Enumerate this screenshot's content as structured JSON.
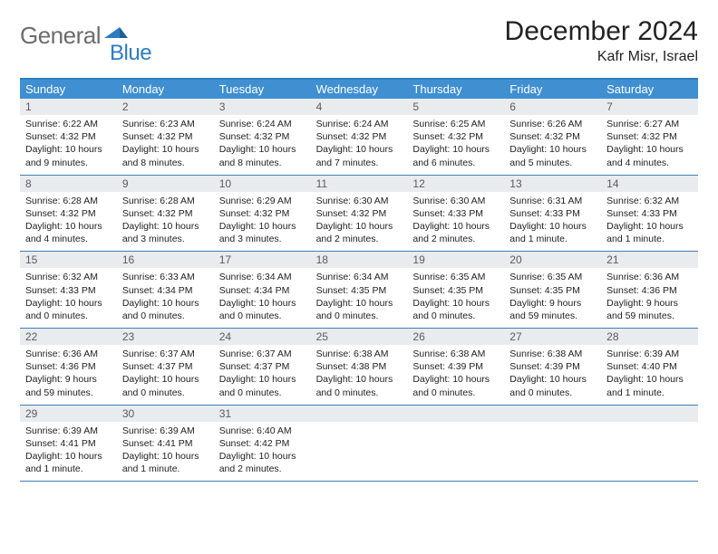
{
  "logo": {
    "general": "General",
    "blue": "Blue"
  },
  "title": "December 2024",
  "location": "Kafr Misr, Israel",
  "colors": {
    "header_bar": "#3f8fd1",
    "top_rule": "#2e7cc0",
    "row_rule": "#3f7fb5",
    "daynum_bg": "#e9ecef",
    "logo_gray": "#6c6c6c",
    "logo_blue": "#2e7cc0"
  },
  "dow": [
    "Sunday",
    "Monday",
    "Tuesday",
    "Wednesday",
    "Thursday",
    "Friday",
    "Saturday"
  ],
  "weeks": [
    [
      {
        "n": "1",
        "sr": "Sunrise: 6:22 AM",
        "ss": "Sunset: 4:32 PM",
        "dl": "Daylight: 10 hours and 9 minutes."
      },
      {
        "n": "2",
        "sr": "Sunrise: 6:23 AM",
        "ss": "Sunset: 4:32 PM",
        "dl": "Daylight: 10 hours and 8 minutes."
      },
      {
        "n": "3",
        "sr": "Sunrise: 6:24 AM",
        "ss": "Sunset: 4:32 PM",
        "dl": "Daylight: 10 hours and 8 minutes."
      },
      {
        "n": "4",
        "sr": "Sunrise: 6:24 AM",
        "ss": "Sunset: 4:32 PM",
        "dl": "Daylight: 10 hours and 7 minutes."
      },
      {
        "n": "5",
        "sr": "Sunrise: 6:25 AM",
        "ss": "Sunset: 4:32 PM",
        "dl": "Daylight: 10 hours and 6 minutes."
      },
      {
        "n": "6",
        "sr": "Sunrise: 6:26 AM",
        "ss": "Sunset: 4:32 PM",
        "dl": "Daylight: 10 hours and 5 minutes."
      },
      {
        "n": "7",
        "sr": "Sunrise: 6:27 AM",
        "ss": "Sunset: 4:32 PM",
        "dl": "Daylight: 10 hours and 4 minutes."
      }
    ],
    [
      {
        "n": "8",
        "sr": "Sunrise: 6:28 AM",
        "ss": "Sunset: 4:32 PM",
        "dl": "Daylight: 10 hours and 4 minutes."
      },
      {
        "n": "9",
        "sr": "Sunrise: 6:28 AM",
        "ss": "Sunset: 4:32 PM",
        "dl": "Daylight: 10 hours and 3 minutes."
      },
      {
        "n": "10",
        "sr": "Sunrise: 6:29 AM",
        "ss": "Sunset: 4:32 PM",
        "dl": "Daylight: 10 hours and 3 minutes."
      },
      {
        "n": "11",
        "sr": "Sunrise: 6:30 AM",
        "ss": "Sunset: 4:32 PM",
        "dl": "Daylight: 10 hours and 2 minutes."
      },
      {
        "n": "12",
        "sr": "Sunrise: 6:30 AM",
        "ss": "Sunset: 4:33 PM",
        "dl": "Daylight: 10 hours and 2 minutes."
      },
      {
        "n": "13",
        "sr": "Sunrise: 6:31 AM",
        "ss": "Sunset: 4:33 PM",
        "dl": "Daylight: 10 hours and 1 minute."
      },
      {
        "n": "14",
        "sr": "Sunrise: 6:32 AM",
        "ss": "Sunset: 4:33 PM",
        "dl": "Daylight: 10 hours and 1 minute."
      }
    ],
    [
      {
        "n": "15",
        "sr": "Sunrise: 6:32 AM",
        "ss": "Sunset: 4:33 PM",
        "dl": "Daylight: 10 hours and 0 minutes."
      },
      {
        "n": "16",
        "sr": "Sunrise: 6:33 AM",
        "ss": "Sunset: 4:34 PM",
        "dl": "Daylight: 10 hours and 0 minutes."
      },
      {
        "n": "17",
        "sr": "Sunrise: 6:34 AM",
        "ss": "Sunset: 4:34 PM",
        "dl": "Daylight: 10 hours and 0 minutes."
      },
      {
        "n": "18",
        "sr": "Sunrise: 6:34 AM",
        "ss": "Sunset: 4:35 PM",
        "dl": "Daylight: 10 hours and 0 minutes."
      },
      {
        "n": "19",
        "sr": "Sunrise: 6:35 AM",
        "ss": "Sunset: 4:35 PM",
        "dl": "Daylight: 10 hours and 0 minutes."
      },
      {
        "n": "20",
        "sr": "Sunrise: 6:35 AM",
        "ss": "Sunset: 4:35 PM",
        "dl": "Daylight: 9 hours and 59 minutes."
      },
      {
        "n": "21",
        "sr": "Sunrise: 6:36 AM",
        "ss": "Sunset: 4:36 PM",
        "dl": "Daylight: 9 hours and 59 minutes."
      }
    ],
    [
      {
        "n": "22",
        "sr": "Sunrise: 6:36 AM",
        "ss": "Sunset: 4:36 PM",
        "dl": "Daylight: 9 hours and 59 minutes."
      },
      {
        "n": "23",
        "sr": "Sunrise: 6:37 AM",
        "ss": "Sunset: 4:37 PM",
        "dl": "Daylight: 10 hours and 0 minutes."
      },
      {
        "n": "24",
        "sr": "Sunrise: 6:37 AM",
        "ss": "Sunset: 4:37 PM",
        "dl": "Daylight: 10 hours and 0 minutes."
      },
      {
        "n": "25",
        "sr": "Sunrise: 6:38 AM",
        "ss": "Sunset: 4:38 PM",
        "dl": "Daylight: 10 hours and 0 minutes."
      },
      {
        "n": "26",
        "sr": "Sunrise: 6:38 AM",
        "ss": "Sunset: 4:39 PM",
        "dl": "Daylight: 10 hours and 0 minutes."
      },
      {
        "n": "27",
        "sr": "Sunrise: 6:38 AM",
        "ss": "Sunset: 4:39 PM",
        "dl": "Daylight: 10 hours and 0 minutes."
      },
      {
        "n": "28",
        "sr": "Sunrise: 6:39 AM",
        "ss": "Sunset: 4:40 PM",
        "dl": "Daylight: 10 hours and 1 minute."
      }
    ],
    [
      {
        "n": "29",
        "sr": "Sunrise: 6:39 AM",
        "ss": "Sunset: 4:41 PM",
        "dl": "Daylight: 10 hours and 1 minute."
      },
      {
        "n": "30",
        "sr": "Sunrise: 6:39 AM",
        "ss": "Sunset: 4:41 PM",
        "dl": "Daylight: 10 hours and 1 minute."
      },
      {
        "n": "31",
        "sr": "Sunrise: 6:40 AM",
        "ss": "Sunset: 4:42 PM",
        "dl": "Daylight: 10 hours and 2 minutes."
      },
      null,
      null,
      null,
      null
    ]
  ]
}
